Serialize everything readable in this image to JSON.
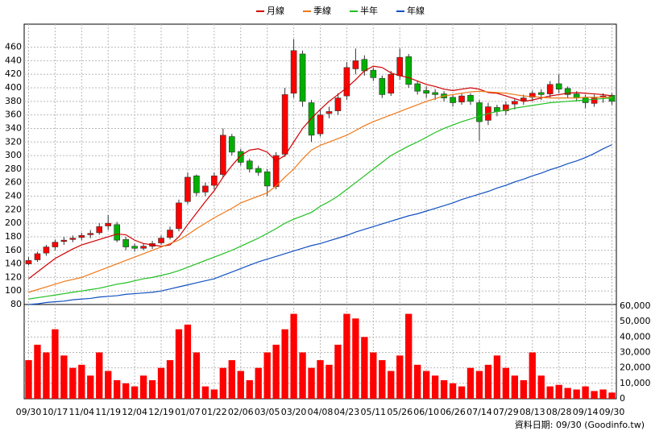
{
  "chart_data": [
    {
      "type": "candlestick",
      "ylim": [
        80,
        494
      ],
      "yticks": [
        80,
        100,
        120,
        140,
        160,
        180,
        200,
        220,
        240,
        260,
        280,
        300,
        320,
        340,
        360,
        380,
        400,
        420,
        440,
        460
      ],
      "grid": true,
      "up_color": "#ff0000",
      "down_color": "#00b000",
      "open": [
        140,
        146,
        156,
        165,
        173,
        176,
        179,
        183,
        186,
        196,
        198,
        176,
        166,
        163,
        166,
        171,
        179,
        192,
        232,
        270,
        246,
        256,
        272,
        328,
        306,
        292,
        281,
        276,
        254,
        302,
        392,
        450,
        378,
        332,
        362,
        366,
        388,
        428,
        442,
        426,
        414,
        392,
        418,
        446,
        406,
        396,
        393,
        391,
        386,
        379,
        389,
        378,
        352,
        371,
        366,
        376,
        381,
        386,
        393,
        391,
        406,
        399,
        391,
        386,
        377,
        386,
        389
      ],
      "high": [
        150,
        158,
        168,
        176,
        180,
        182,
        186,
        190,
        200,
        212,
        202,
        180,
        170,
        170,
        174,
        182,
        195,
        235,
        275,
        272,
        260,
        275,
        340,
        332,
        310,
        295,
        285,
        280,
        305,
        400,
        472,
        455,
        382,
        368,
        372,
        392,
        438,
        458,
        448,
        430,
        418,
        425,
        458,
        450,
        410,
        402,
        398,
        395,
        390,
        392,
        392,
        382,
        378,
        375,
        380,
        385,
        390,
        396,
        398,
        410,
        420,
        402,
        395,
        390,
        390,
        392,
        392
      ],
      "low": [
        138,
        143,
        152,
        160,
        168,
        172,
        175,
        178,
        183,
        190,
        172,
        160,
        158,
        160,
        162,
        168,
        176,
        188,
        228,
        240,
        240,
        250,
        268,
        300,
        285,
        275,
        270,
        240,
        250,
        298,
        385,
        372,
        320,
        328,
        355,
        360,
        382,
        420,
        418,
        410,
        385,
        388,
        412,
        400,
        390,
        385,
        382,
        380,
        372,
        375,
        375,
        322,
        345,
        358,
        360,
        368,
        375,
        380,
        382,
        385,
        392,
        385,
        380,
        370,
        372,
        378,
        375
      ],
      "close": [
        145,
        155,
        165,
        172,
        175,
        178,
        182,
        185,
        195,
        200,
        175,
        165,
        163,
        166,
        170,
        178,
        190,
        230,
        268,
        245,
        255,
        270,
        330,
        305,
        290,
        280,
        275,
        255,
        300,
        390,
        455,
        380,
        330,
        360,
        365,
        385,
        430,
        440,
        425,
        415,
        390,
        420,
        445,
        405,
        395,
        392,
        390,
        385,
        378,
        388,
        380,
        350,
        372,
        365,
        375,
        380,
        385,
        392,
        390,
        405,
        398,
        390,
        385,
        378,
        385,
        388,
        380
      ],
      "series": [
        {
          "name": "月線",
          "color": "#d00000",
          "values": [
            118,
            128,
            138,
            148,
            155,
            162,
            168,
            172,
            176,
            180,
            184,
            183,
            175,
            170,
            168,
            166,
            168,
            180,
            198,
            215,
            232,
            248,
            268,
            285,
            300,
            308,
            310,
            305,
            292,
            300,
            320,
            340,
            355,
            368,
            380,
            390,
            400,
            412,
            425,
            432,
            430,
            422,
            418,
            415,
            410,
            405,
            402,
            398,
            396,
            398,
            400,
            398,
            393,
            392,
            388,
            384,
            380,
            382,
            385,
            388,
            390,
            392,
            393,
            392,
            391,
            390,
            388
          ]
        },
        {
          "name": "季線",
          "color": "#f07818",
          "values": [
            98,
            102,
            106,
            110,
            114,
            117,
            120,
            125,
            130,
            135,
            140,
            145,
            150,
            155,
            160,
            165,
            170,
            175,
            183,
            192,
            200,
            208,
            215,
            222,
            230,
            235,
            240,
            245,
            255,
            268,
            280,
            295,
            308,
            315,
            320,
            325,
            330,
            337,
            344,
            350,
            355,
            360,
            365,
            370,
            375,
            380,
            384,
            388,
            390,
            392,
            394,
            395,
            394,
            393,
            392,
            390,
            388,
            387,
            386,
            385,
            385,
            385,
            385,
            386,
            386,
            386,
            386
          ]
        },
        {
          "name": "半年",
          "color": "#20c020",
          "values": [
            88,
            90,
            92,
            94,
            96,
            98,
            100,
            102,
            104,
            107,
            110,
            112,
            115,
            118,
            120,
            123,
            126,
            130,
            135,
            140,
            145,
            150,
            155,
            160,
            166,
            172,
            178,
            185,
            192,
            200,
            206,
            211,
            216,
            225,
            232,
            240,
            250,
            260,
            270,
            280,
            290,
            300,
            307,
            314,
            320,
            327,
            334,
            340,
            345,
            350,
            354,
            358,
            362,
            365,
            367,
            370,
            372,
            374,
            376,
            378,
            379,
            380,
            381,
            382,
            383,
            384,
            385
          ]
        },
        {
          "name": "年線",
          "color": "#1050c0",
          "values": [
            80,
            81,
            83,
            84,
            85,
            87,
            88,
            89,
            91,
            92,
            93,
            95,
            96,
            97,
            98,
            100,
            103,
            106,
            109,
            112,
            115,
            118,
            123,
            128,
            133,
            138,
            143,
            147,
            151,
            155,
            159,
            163,
            167,
            170,
            174,
            178,
            182,
            187,
            191,
            195,
            199,
            203,
            207,
            211,
            214,
            218,
            222,
            226,
            230,
            235,
            239,
            243,
            247,
            252,
            256,
            261,
            265,
            270,
            274,
            279,
            283,
            288,
            292,
            297,
            303,
            310,
            316
          ]
        }
      ]
    },
    {
      "type": "bar",
      "color": "#ff0000",
      "ylim": [
        0,
        60000
      ],
      "yticks": [
        0,
        {
          "value": 10000,
          "label": "10,000"
        },
        {
          "value": 20000,
          "label": "20,000"
        },
        {
          "value": 30000,
          "label": "30,000"
        },
        {
          "value": 40000,
          "label": "40,000"
        },
        {
          "value": 50000,
          "label": "50,000"
        },
        {
          "value": 60000,
          "label": "60,000"
        }
      ],
      "categories": [
        "09/30",
        null,
        null,
        "10/17",
        null,
        null,
        "11/04",
        null,
        null,
        "11/19",
        null,
        null,
        "12/04",
        null,
        null,
        "12/19",
        null,
        null,
        "01/07",
        null,
        null,
        "01/22",
        null,
        null,
        "02/06",
        null,
        null,
        "03/05",
        null,
        null,
        "03/20",
        null,
        null,
        "04/08",
        null,
        null,
        "04/23",
        null,
        null,
        "05/11",
        null,
        null,
        "05/26",
        null,
        null,
        "06/10",
        null,
        null,
        "06/26",
        null,
        null,
        "07/14",
        null,
        null,
        "07/29",
        null,
        null,
        "08/13",
        null,
        null,
        "08/28",
        null,
        null,
        "09/14",
        null,
        null,
        "09/30"
      ],
      "values": [
        25000,
        35000,
        30000,
        45000,
        28000,
        20000,
        22000,
        15000,
        30000,
        18000,
        12000,
        10000,
        8000,
        15000,
        12000,
        20000,
        25000,
        45000,
        48000,
        30000,
        8000,
        6000,
        20000,
        25000,
        18000,
        12000,
        20000,
        30000,
        35000,
        45000,
        55000,
        30000,
        20000,
        25000,
        22000,
        35000,
        55000,
        52000,
        40000,
        30000,
        25000,
        18000,
        28000,
        55000,
        22000,
        18000,
        15000,
        12000,
        10000,
        8000,
        20000,
        18000,
        22000,
        28000,
        20000,
        15000,
        12000,
        30000,
        15000,
        8000,
        9000,
        7000,
        6000,
        8000,
        5000,
        6000,
        4000
      ]
    }
  ],
  "footer": "資料日期: 09/30  (Goodinfo.tw)"
}
